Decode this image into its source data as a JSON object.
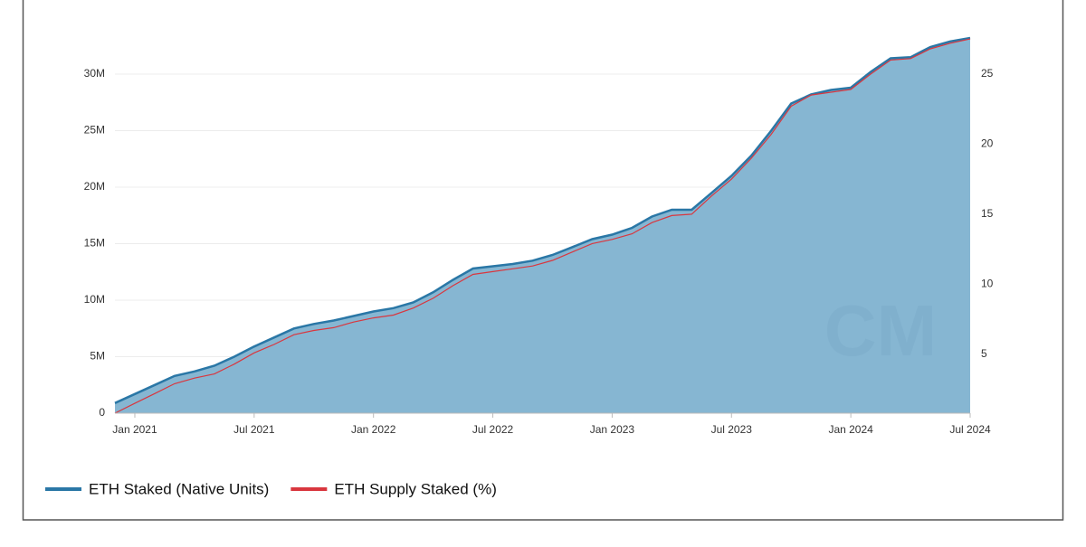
{
  "chart_data": {
    "type": "area-line",
    "x": [
      "2020-12",
      "2021-01",
      "2021-02",
      "2021-03",
      "2021-04",
      "2021-05",
      "2021-06",
      "2021-07",
      "2021-08",
      "2021-09",
      "2021-10",
      "2021-11",
      "2021-12",
      "2022-01",
      "2022-02",
      "2022-03",
      "2022-04",
      "2022-05",
      "2022-06",
      "2022-07",
      "2022-08",
      "2022-09",
      "2022-10",
      "2022-11",
      "2022-12",
      "2023-01",
      "2023-02",
      "2023-03",
      "2023-04",
      "2023-05",
      "2023-06",
      "2023-07",
      "2023-08",
      "2023-09",
      "2023-10",
      "2023-11",
      "2023-12",
      "2024-01",
      "2024-02",
      "2024-03",
      "2024-04",
      "2024-05",
      "2024-06",
      "2024-07"
    ],
    "xlim": [
      "2020-12",
      "2024-07"
    ],
    "xticks": [
      {
        "value": "2021-01",
        "label": "Jan 2021"
      },
      {
        "value": "2021-07",
        "label": "Jul 2021"
      },
      {
        "value": "2022-01",
        "label": "Jan 2022"
      },
      {
        "value": "2022-07",
        "label": "Jul 2022"
      },
      {
        "value": "2023-01",
        "label": "Jan 2023"
      },
      {
        "value": "2023-07",
        "label": "Jul 2023"
      },
      {
        "value": "2024-01",
        "label": "Jan 2024"
      },
      {
        "value": "2024-07",
        "label": "Jul 2024"
      }
    ],
    "ylim": [
      0,
      33360000
    ],
    "yticks": [
      0,
      {
        "value": 5000000,
        "label": "5M"
      },
      {
        "value": 10000000,
        "label": "10M"
      },
      {
        "value": 15000000,
        "label": "15M"
      },
      {
        "value": 20000000,
        "label": "20M"
      },
      {
        "value": 25000000,
        "label": "25M"
      },
      {
        "value": 30000000,
        "label": "30M"
      }
    ],
    "y2lim": [
      0.8,
      27.7
    ],
    "y2ticks": [
      5,
      10,
      15,
      20,
      25
    ],
    "grid": true,
    "watermark": "CM",
    "series": [
      {
        "name": "ETH Staked (Native Units)",
        "color": "#2a77a6",
        "fill": "#86b6d2",
        "values": [
          900000,
          1700000,
          2500000,
          3300000,
          3700000,
          4200000,
          5000000,
          5900000,
          6700000,
          7500000,
          7900000,
          8200000,
          8600000,
          9000000,
          9300000,
          9800000,
          10700000,
          11800000,
          12800000,
          13000000,
          13200000,
          13500000,
          14000000,
          14700000,
          15400000,
          15800000,
          16400000,
          17400000,
          18000000,
          18000000,
          19500000,
          21000000,
          22800000,
          25000000,
          27400000,
          28200000,
          28600000,
          28800000,
          30200000,
          31400000,
          31500000,
          32400000,
          32900000,
          33200000
        ]
      },
      {
        "name": "ETH Supply Staked (%)",
        "color": "#d9363e",
        "axis": "y2",
        "values": [
          0.8,
          1.5,
          2.2,
          2.9,
          3.3,
          3.6,
          4.3,
          5.1,
          5.7,
          6.4,
          6.7,
          6.9,
          7.3,
          7.6,
          7.8,
          8.3,
          9.0,
          9.9,
          10.7,
          10.9,
          11.1,
          11.3,
          11.7,
          12.3,
          12.9,
          13.2,
          13.6,
          14.4,
          14.9,
          15.0,
          16.3,
          17.5,
          19.0,
          20.7,
          22.7,
          23.5,
          23.7,
          23.9,
          25.0,
          26.0,
          26.1,
          26.8,
          27.2,
          27.5
        ]
      }
    ]
  }
}
